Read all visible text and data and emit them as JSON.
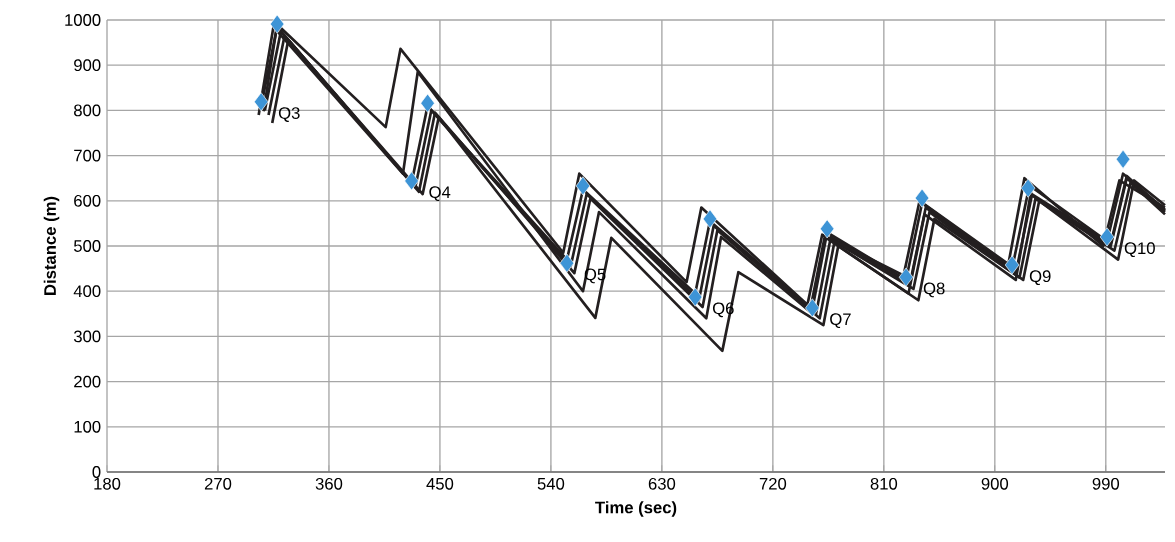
{
  "chart_data": {
    "type": "line",
    "xlabel": "Time (sec)",
    "ylabel": "Distance (m)",
    "xlim": [
      180,
      1038
    ],
    "ylim": [
      0,
      1000
    ],
    "xticks": [
      180,
      270,
      360,
      450,
      540,
      630,
      720,
      810,
      900,
      990
    ],
    "yticks": [
      0,
      100,
      200,
      300,
      400,
      500,
      600,
      700,
      800,
      900,
      1000
    ],
    "grid": true,
    "series": [
      {
        "color": "#231f20",
        "x": [
          305,
          318,
          427,
          440,
          553,
          566,
          657,
          669,
          752,
          764,
          828,
          841,
          914,
          927,
          991,
          1004,
          1038
        ],
        "values": [
          810,
          985,
          640,
          810,
          470,
          625,
          395,
          555,
          360,
          530,
          425,
          595,
          450,
          620,
          510,
          660,
          580
        ]
      },
      {
        "color": "#231f20",
        "x": [
          308,
          321,
          430,
          443,
          556,
          569,
          660,
          672,
          755,
          767,
          831,
          844,
          917,
          930,
          994,
          1007,
          1038
        ],
        "values": [
          800,
          975,
          630,
          800,
          455,
          615,
          380,
          545,
          350,
          520,
          415,
          585,
          440,
          612,
          500,
          650,
          575
        ]
      },
      {
        "color": "#231f20",
        "x": [
          311,
          324,
          433,
          446,
          559,
          572,
          663,
          675,
          758,
          770,
          834,
          847,
          920,
          933,
          997,
          1010,
          1038
        ],
        "values": [
          790,
          965,
          620,
          795,
          440,
          605,
          365,
          535,
          340,
          510,
          405,
          575,
          430,
          605,
          490,
          640,
          570
        ]
      },
      {
        "color": "#231f20",
        "x": [
          314,
          327,
          436,
          449,
          576,
          589,
          679,
          692,
          761,
          773,
          838,
          851,
          923,
          936,
          1000,
          1013,
          1038
        ],
        "values": [
          772,
          956,
          615,
          785,
          341,
          518,
          268,
          442,
          325,
          500,
          380,
          560,
          425,
          600,
          470,
          645,
          590
        ]
      },
      {
        "color": "#231f20",
        "x": [
          307,
          318,
          406,
          418,
          550,
          563,
          650,
          662,
          748,
          760,
          826,
          839,
          911,
          924,
          988,
          1001,
          1038
        ],
        "values": [
          798,
          990,
          763,
          936,
          485,
          660,
          420,
          585,
          370,
          525,
          435,
          600,
          460,
          650,
          500,
          645,
          585
        ]
      },
      {
        "color": "#231f20",
        "x": [
          303,
          315,
          420,
          432,
          566,
          579,
          666,
          678,
          750,
          762,
          830,
          843,
          917,
          930,
          994,
          1007,
          1038
        ],
        "values": [
          790,
          985,
          660,
          885,
          400,
          575,
          340,
          520,
          355,
          520,
          395,
          570,
          425,
          630,
          505,
          655,
          578
        ]
      },
      {
        "type": "scatter",
        "color": "#3d94d6",
        "marker": "diamond",
        "x": [
          305,
          318,
          427,
          440,
          553,
          566,
          657,
          669,
          752,
          764,
          828,
          841,
          914,
          927,
          991,
          1004
        ],
        "values": [
          819,
          991,
          644,
          816,
          462,
          633,
          387,
          560,
          363,
          538,
          431,
          606,
          458,
          628,
          520,
          692
        ]
      }
    ],
    "annotations": [
      {
        "text": "Q3",
        "x": 305,
        "y": 819
      },
      {
        "text": "Q4",
        "x": 427,
        "y": 644
      },
      {
        "text": "Q5",
        "x": 553,
        "y": 462
      },
      {
        "text": "Q6",
        "x": 657,
        "y": 387
      },
      {
        "text": "Q7",
        "x": 752,
        "y": 363
      },
      {
        "text": "Q8",
        "x": 828,
        "y": 431
      },
      {
        "text": "Q9",
        "x": 914,
        "y": 458
      },
      {
        "text": "Q10",
        "x": 991,
        "y": 520
      }
    ]
  }
}
